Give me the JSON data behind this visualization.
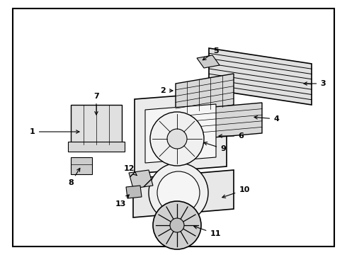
{
  "bg_color": "#ffffff",
  "border_color": "#000000",
  "line_color": "#000000",
  "fig_width": 4.9,
  "fig_height": 3.6,
  "dpi": 100
}
